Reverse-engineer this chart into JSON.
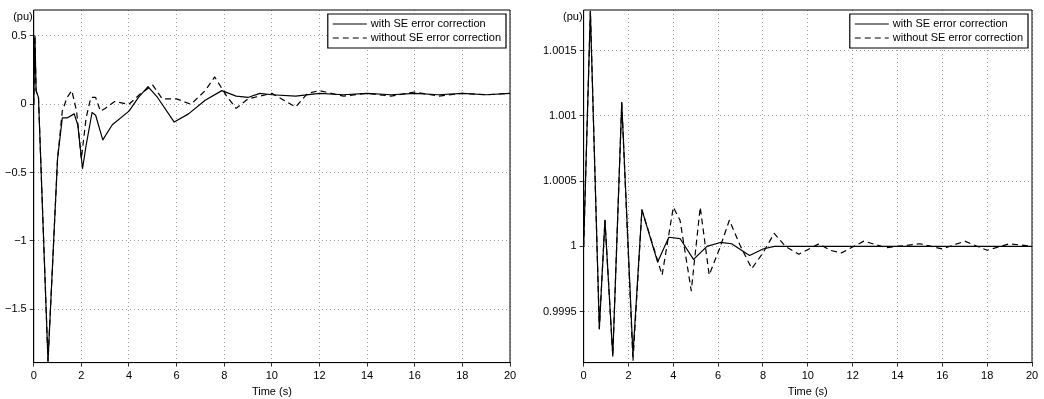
{
  "chart_data": [
    {
      "type": "line",
      "xlabel": "Time (s)",
      "ylabel": "(pu)",
      "xlim": [
        0,
        20
      ],
      "xticks": [
        0,
        2,
        4,
        6,
        8,
        10,
        12,
        14,
        16,
        18,
        20
      ],
      "ylim": [
        -1.89,
        0.69
      ],
      "yticks": [
        -1.5,
        -1,
        -0.5,
        0,
        0.5
      ],
      "grid": true,
      "legend": "top right",
      "series": [
        {
          "name": "with SE error correction",
          "color": "#000000",
          "line_style": "solid",
          "x": [
            0,
            0.05,
            0.1,
            0.2,
            0.6,
            1.0,
            1.2,
            1.4,
            1.7,
            1.85,
            2.05,
            2.2,
            2.45,
            2.6,
            2.9,
            3.3,
            4.0,
            4.4,
            4.8,
            5.2,
            5.9,
            6.5,
            7.2,
            7.9,
            8.5,
            9,
            9.5,
            10,
            11,
            12,
            13,
            14,
            15,
            16,
            17,
            18,
            19,
            20
          ],
          "values": [
            0,
            0.5,
            0.1,
            0.05,
            -1.88,
            -0.4,
            -0.1,
            -0.1,
            -0.07,
            -0.15,
            -0.47,
            -0.3,
            -0.06,
            -0.08,
            -0.26,
            -0.15,
            -0.05,
            0.05,
            0.13,
            0.05,
            -0.13,
            -0.07,
            0.03,
            0.1,
            0.06,
            0.05,
            0.08,
            0.07,
            0.06,
            0.08,
            0.07,
            0.08,
            0.07,
            0.08,
            0.07,
            0.08,
            0.07,
            0.08
          ]
        },
        {
          "name": "without SE error correction",
          "color": "#000000",
          "line_style": "dashed",
          "x": [
            0,
            0.05,
            0.1,
            0.2,
            0.6,
            1.0,
            1.2,
            1.4,
            1.6,
            1.8,
            2.0,
            2.2,
            2.4,
            2.6,
            2.8,
            3.0,
            3.4,
            4.0,
            4.5,
            5.0,
            5.4,
            6.0,
            6.6,
            7.2,
            7.6,
            8.1,
            8.5,
            9.0,
            10,
            10.5,
            11.0,
            11.5,
            12,
            13,
            14,
            15,
            16,
            17,
            18,
            19,
            20
          ],
          "values": [
            0,
            0.5,
            0.1,
            0.05,
            -1.88,
            -0.4,
            -0.05,
            0.05,
            0.1,
            -0.05,
            -0.4,
            -0.1,
            0.05,
            0.05,
            -0.05,
            -0.03,
            0.02,
            0,
            0.08,
            0.14,
            0.04,
            0.04,
            0,
            0.1,
            0.2,
            0.06,
            -0.03,
            0.04,
            0.08,
            0.03,
            -0.02,
            0.08,
            0.1,
            0.06,
            0.08,
            0.06,
            0.09,
            0.06,
            0.08,
            0.07,
            0.08
          ]
        }
      ]
    },
    {
      "type": "line",
      "xlabel": "Time (s)",
      "ylabel": "(pu)",
      "xlim": [
        0,
        20
      ],
      "xticks": [
        0,
        2,
        4,
        6,
        8,
        10,
        12,
        14,
        16,
        18,
        20
      ],
      "ylim": [
        0.99911,
        1.00181
      ],
      "yticks": [
        0.9995,
        1,
        1.0005,
        1.001,
        1.0015
      ],
      "grid": true,
      "legend": "top right",
      "series": [
        {
          "name": "with SE error correction",
          "color": "#000000",
          "line_style": "solid",
          "x": [
            0,
            0.3,
            0.7,
            0.95,
            1.3,
            1.7,
            2.2,
            2.6,
            3.3,
            3.8,
            4.3,
            4.9,
            5.5,
            6.1,
            6.6,
            7.4,
            8.0,
            8.5,
            10,
            12,
            14,
            16,
            18,
            20
          ],
          "values": [
            1.0,
            1.0018,
            0.99937,
            1.0002,
            0.99916,
            1.0011,
            0.99917,
            1.00028,
            0.99988,
            1.00007,
            1.00006,
            0.9999,
            1.0,
            1.00003,
            1.00002,
            0.99993,
            0.99998,
            1.0,
            1.0,
            1.0,
            1.0,
            1.0,
            1.0,
            1.0
          ]
        },
        {
          "name": "without SE error correction",
          "color": "#000000",
          "line_style": "dashed",
          "x": [
            0,
            0.3,
            0.7,
            0.95,
            1.3,
            1.7,
            2.2,
            2.6,
            3.5,
            4.0,
            4.3,
            4.8,
            5.2,
            5.6,
            6.1,
            6.5,
            7.0,
            7.5,
            8.0,
            8.5,
            9.0,
            9.6,
            10.5,
            11,
            11.5,
            12.5,
            13.5,
            15,
            16,
            17,
            18,
            19,
            20
          ],
          "values": [
            1.0,
            1.0018,
            0.99937,
            1.0002,
            0.99916,
            1.0011,
            0.99912,
            1.00028,
            0.99978,
            1.0003,
            1.0002,
            0.99966,
            1.0003,
            0.99978,
            1.0,
            1.0002,
            1.0,
            0.99983,
            0.99995,
            1.0001,
            1.0,
            0.99994,
            1.00002,
            0.99997,
            0.99995,
            1.00004,
            0.99999,
            1.00002,
            0.99998,
            1.00004,
            0.99997,
            1.00002,
            1.0
          ]
        }
      ]
    }
  ]
}
